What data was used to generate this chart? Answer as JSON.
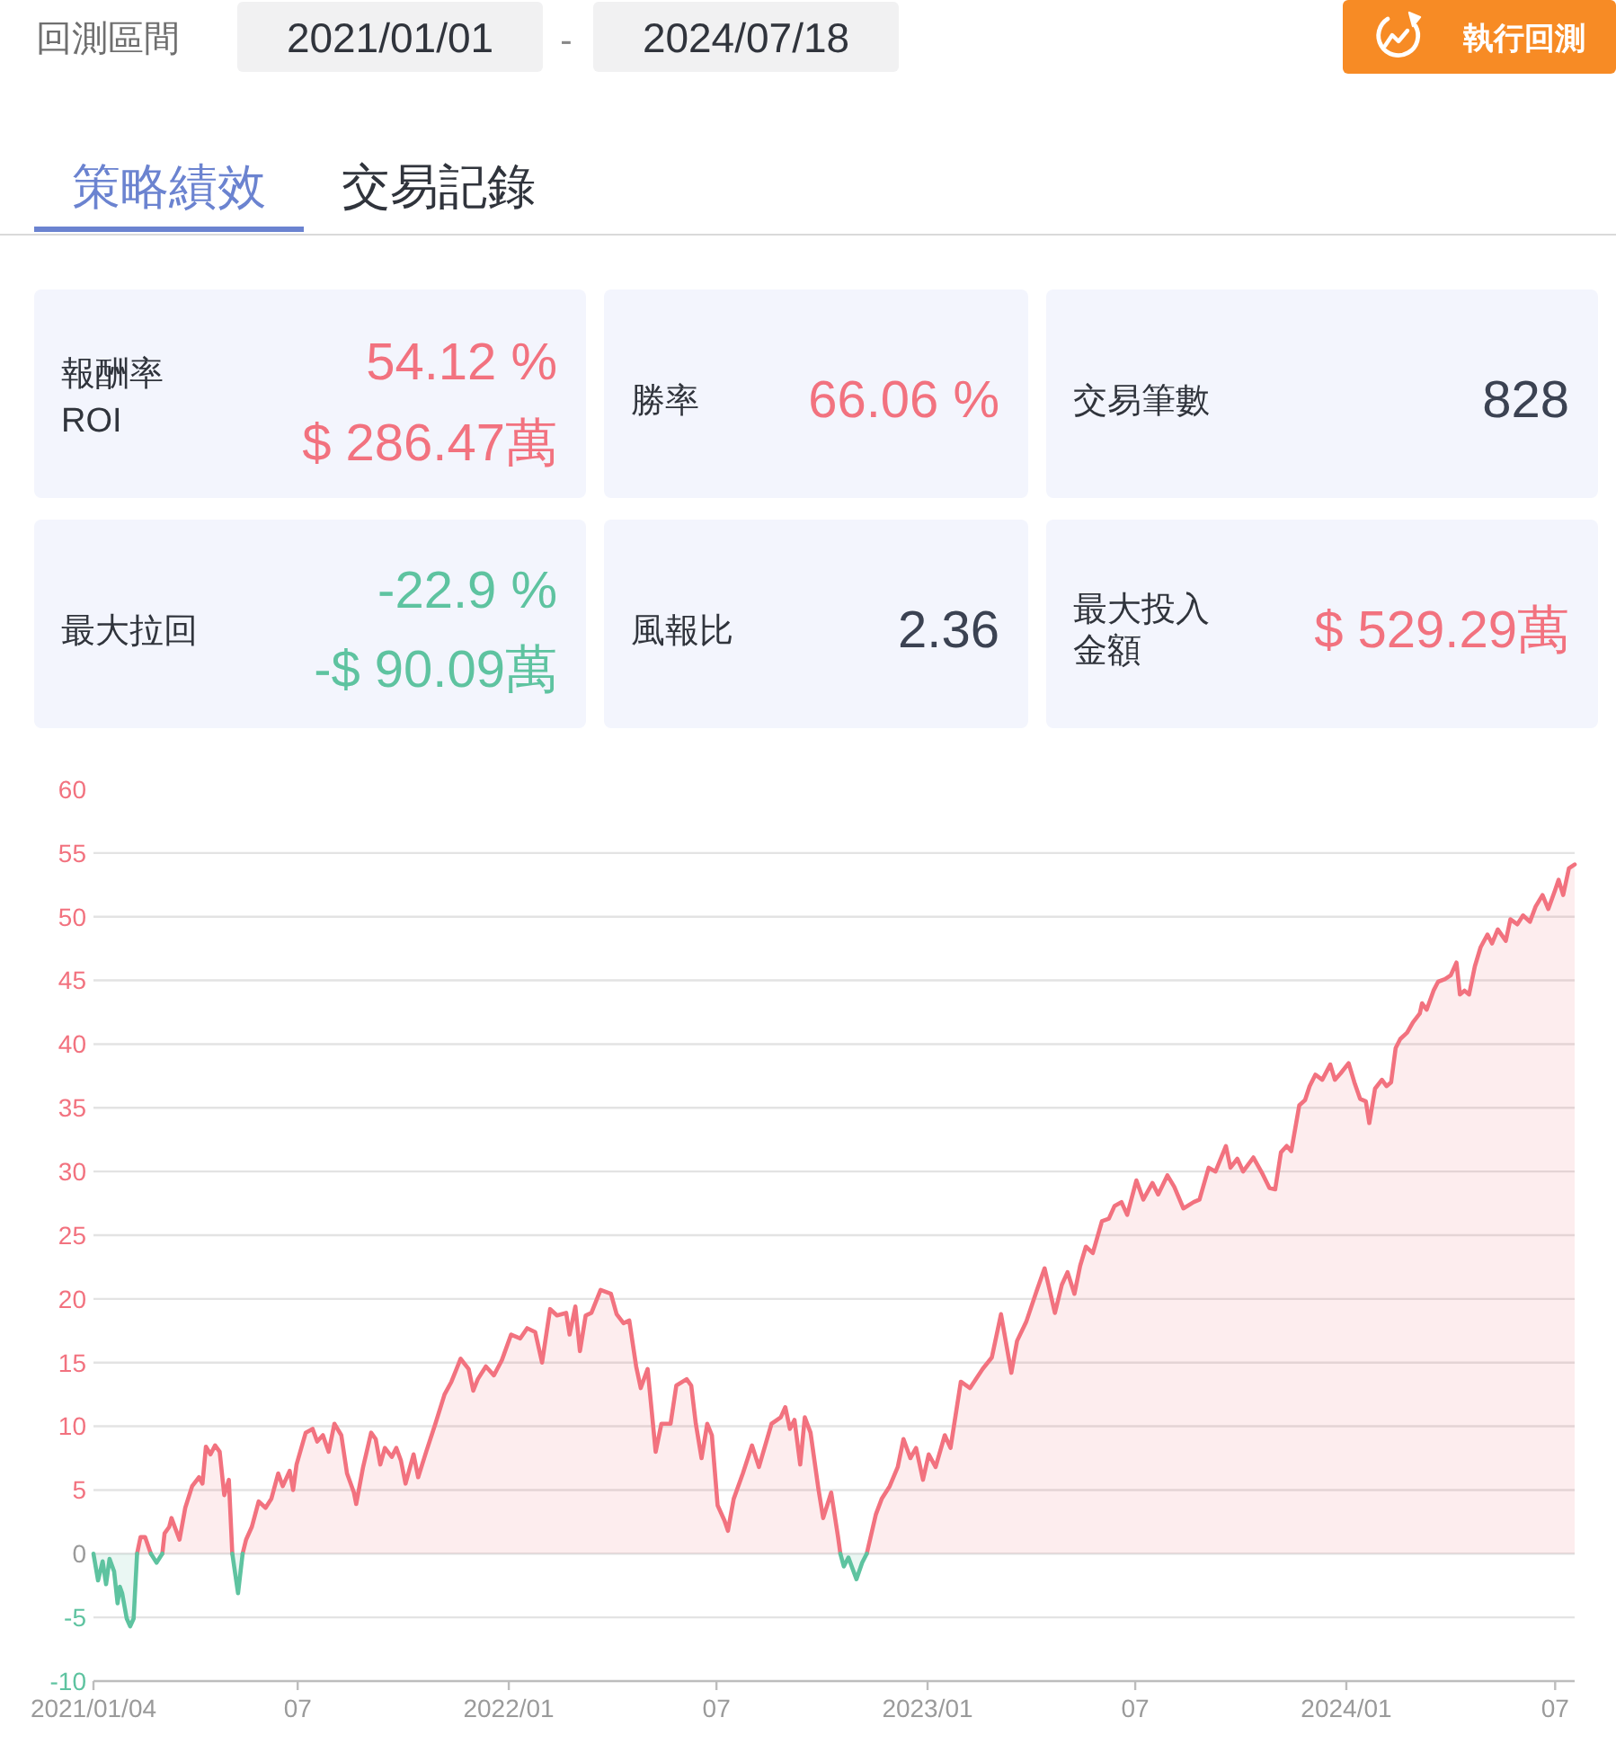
{
  "chart_data": [
    {
      "type": "other",
      "annotations": [
        "回測區間",
        "2021/01/01",
        "-",
        "2024/07/18",
        "執行回測",
        "策略績效",
        "交易記錄",
        "報酬率",
        "ROI",
        "54.12 %",
        "$ 286.47萬",
        "勝率",
        "66.06 %",
        "交易筆數",
        "828",
        "最大拉回",
        "-22.9 %",
        "-$ 90.09萬",
        "風報比",
        "2.36",
        "最大投入",
        "金額",
        "$ 529.29萬"
      ]
    },
    {
      "type": "area",
      "grid": "y",
      "xlim": [
        "2021-01-04",
        "2024-07-18"
      ],
      "ylim": [
        -10,
        60
      ],
      "yticks": [
        -10,
        -5,
        0,
        5,
        10,
        15,
        20,
        25,
        30,
        35,
        40,
        45,
        50,
        55,
        60
      ],
      "xticks": [
        {
          "value": "2021-01-04",
          "label": "2021/01/04"
        },
        {
          "value": "2021-07-01",
          "label": "07"
        },
        {
          "value": "2022-01-01",
          "label": "2022/01"
        },
        {
          "value": "2022-07-01",
          "label": "07"
        },
        {
          "value": "2023-01-01",
          "label": "2023/01"
        },
        {
          "value": "2023-07-01",
          "label": "07"
        },
        {
          "value": "2024-01-01",
          "label": "2024/01"
        },
        {
          "value": "2024-07-01",
          "label": "07"
        }
      ],
      "series": [
        {
          "color": "#f2727f",
          "x": [
            "2021-02-11",
            "2021-02-14",
            "2021-02-18",
            "2021-02-23",
            "2021-02-28",
            "2021-03-05",
            "2021-03-07",
            "2021-03-11",
            "2021-03-13",
            "2021-03-20",
            "2021-03-25",
            "2021-03-31",
            "2021-04-06",
            "2021-04-09",
            "2021-04-12",
            "2021-04-16",
            "2021-04-20",
            "2021-04-24",
            "2021-04-28",
            "2021-05-02",
            "2021-05-05",
            "2021-05-10",
            "2021-05-14",
            "2021-05-17",
            "2021-05-22",
            "2021-05-28",
            "2021-06-03",
            "2021-06-08",
            "2021-06-14",
            "2021-06-18",
            "2021-06-24",
            "2021-06-27",
            "2021-06-30",
            "2021-07-08",
            "2021-07-14",
            "2021-07-18",
            "2021-07-23",
            "2021-07-28",
            "2021-08-02",
            "2021-08-08",
            "2021-08-13",
            "2021-08-19",
            "2021-08-21",
            "2021-08-27",
            "2021-09-03",
            "2021-09-07",
            "2021-09-11",
            "2021-09-15",
            "2021-09-21",
            "2021-09-25",
            "2021-09-29",
            "2021-10-03",
            "2021-10-10",
            "2021-10-14",
            "2021-10-21",
            "2021-10-29",
            "2021-11-06",
            "2021-11-12",
            "2021-11-20",
            "2021-11-27",
            "2021-12-01",
            "2021-12-05",
            "2021-12-12",
            "2021-12-19",
            "2021-12-26",
            "2022-01-03",
            "2022-01-11",
            "2022-01-17",
            "2022-01-24",
            "2022-01-30",
            "2022-02-06",
            "2022-02-12",
            "2022-02-20",
            "2022-02-23",
            "2022-02-28",
            "2022-03-04",
            "2022-03-09",
            "2022-03-14",
            "2022-03-22",
            "2022-03-31",
            "2022-04-05",
            "2022-04-11",
            "2022-04-16",
            "2022-04-22",
            "2022-04-26",
            "2022-05-02",
            "2022-05-09",
            "2022-05-14",
            "2022-05-22",
            "2022-05-27",
            "2022-06-05",
            "2022-06-09",
            "2022-06-13",
            "2022-06-18",
            "2022-06-23",
            "2022-06-27",
            "2022-07-02",
            "2022-07-08",
            "2022-07-11",
            "2022-07-16",
            "2022-07-24",
            "2022-08-01",
            "2022-08-07",
            "2022-08-18",
            "2022-08-26",
            "2022-08-30",
            "2022-09-03",
            "2022-09-07",
            "2022-09-12",
            "2022-09-16",
            "2022-09-21",
            "2022-09-28",
            "2022-10-02",
            "2022-10-09",
            "2022-10-15",
            "2022-10-17",
            "2022-10-20",
            "2022-10-24",
            "2022-10-31",
            "2022-11-05",
            "2022-11-09",
            "2022-11-17",
            "2022-11-22",
            "2022-11-29",
            "2022-12-06",
            "2022-12-11",
            "2022-12-17",
            "2022-12-22",
            "2022-12-28",
            "2023-01-02",
            "2023-01-08",
            "2023-01-16",
            "2023-01-21",
            "2023-01-30",
            "2023-02-07",
            "2023-02-18",
            "2023-02-26",
            "2023-03-06",
            "2023-03-15",
            "2023-03-20",
            "2023-03-28",
            "2023-04-06",
            "2023-04-13",
            "2023-04-22",
            "2023-04-28",
            "2023-05-03",
            "2023-05-09",
            "2023-05-14",
            "2023-05-19",
            "2023-05-25",
            "2023-06-02",
            "2023-06-08",
            "2023-06-13",
            "2023-06-19",
            "2023-06-24",
            "2023-07-02",
            "2023-07-08",
            "2023-07-16",
            "2023-07-21",
            "2023-07-29",
            "2023-08-04",
            "2023-08-12",
            "2023-08-21",
            "2023-08-26",
            "2023-09-03",
            "2023-09-09",
            "2023-09-18",
            "2023-09-22",
            "2023-09-28",
            "2023-10-03",
            "2023-10-12",
            "2023-10-20",
            "2023-10-26",
            "2023-10-31",
            "2023-11-05",
            "2023-11-10",
            "2023-11-14",
            "2023-11-21",
            "2023-11-26",
            "2023-11-30",
            "2023-12-05",
            "2023-12-11",
            "2023-12-18",
            "2023-12-22",
            "2023-12-27",
            "2024-01-03",
            "2024-01-08",
            "2024-01-13",
            "2024-01-18",
            "2024-01-21",
            "2024-01-26",
            "2024-02-01",
            "2024-02-05",
            "2024-02-09",
            "2024-02-13",
            "2024-02-17",
            "2024-02-23",
            "2024-02-28",
            "2024-03-05",
            "2024-03-07",
            "2024-03-11",
            "2024-03-17",
            "2024-03-21",
            "2024-03-27",
            "2024-04-01",
            "2024-04-06",
            "2024-04-09",
            "2024-04-13",
            "2024-04-17",
            "2024-04-22",
            "2024-04-27",
            "2024-05-03",
            "2024-05-07",
            "2024-05-12",
            "2024-05-19",
            "2024-05-23",
            "2024-05-29",
            "2024-06-03",
            "2024-06-09",
            "2024-06-14",
            "2024-06-20",
            "2024-06-25",
            "2024-07-01",
            "2024-07-04",
            "2024-07-08",
            "2024-07-13",
            "2024-07-18"
          ],
          "values": [
            0,
            1.3,
            1.3,
            0,
            null,
            0,
            1.6,
            2.1,
            2.8,
            1.1,
            3.6,
            5.3,
            6.0,
            5.5,
            8.4,
            7.8,
            8.5,
            8.0,
            4.6,
            5.8,
            0,
            null,
            0,
            1.1,
            2.1,
            4.1,
            3.6,
            4.3,
            6.3,
            5.3,
            6.5,
            5.0,
            7.0,
            9.5,
            9.8,
            8.8,
            9.3,
            8.0,
            10.2,
            9.3,
            6.3,
            4.8,
            3.9,
            6.8,
            9.5,
            9.0,
            7.0,
            8.3,
            7.6,
            8.3,
            7.3,
            5.5,
            7.8,
            6.0,
            8.0,
            10.2,
            12.5,
            13.5,
            15.3,
            14.5,
            12.8,
            13.7,
            14.7,
            14.0,
            15.2,
            17.2,
            16.9,
            17.7,
            17.4,
            15.0,
            19.2,
            18.7,
            18.9,
            17.2,
            19.4,
            15.9,
            18.7,
            18.9,
            20.7,
            20.4,
            18.8,
            18.1,
            18.3,
            14.7,
            13.0,
            14.5,
            8.0,
            10.2,
            10.2,
            13.2,
            13.7,
            13.2,
            10.2,
            7.5,
            10.2,
            9.3,
            3.8,
            2.6,
            1.8,
            4.3,
            6.3,
            8.5,
            6.8,
            10.2,
            10.7,
            11.5,
            9.8,
            10.5,
            7.0,
            10.7,
            9.5,
            5.0,
            2.8,
            4.8,
            1.3,
            0,
            null,
            null,
            null,
            null,
            0,
            3.1,
            4.3,
            5.3,
            6.8,
            9.0,
            7.5,
            8.3,
            5.8,
            7.8,
            6.8,
            9.3,
            8.3,
            13.5,
            13.0,
            14.5,
            15.4,
            18.8,
            14.2,
            16.7,
            18.2,
            20.6,
            22.4,
            18.9,
            21.1,
            22.1,
            20.4,
            22.6,
            24.1,
            23.6,
            26.1,
            26.3,
            27.3,
            27.6,
            26.6,
            29.3,
            27.8,
            29.1,
            28.2,
            29.7,
            28.8,
            27.1,
            27.6,
            27.8,
            30.3,
            30.0,
            32.0,
            30.3,
            31.0,
            30.0,
            31.1,
            29.8,
            28.7,
            28.6,
            31.5,
            32.0,
            31.6,
            35.2,
            35.6,
            36.7,
            37.6,
            37.2,
            38.4,
            37.2,
            37.7,
            38.5,
            37.0,
            35.7,
            35.5,
            33.8,
            36.5,
            37.2,
            36.7,
            37.0,
            39.7,
            40.4,
            40.9,
            41.7,
            42.4,
            43.2,
            42.7,
            44.2,
            44.9,
            45.1,
            45.4,
            46.4,
            43.9,
            44.2,
            43.9,
            46.1,
            47.6,
            48.6,
            47.9,
            49.0,
            48.1,
            49.8,
            49.4,
            50.1,
            49.6,
            50.8,
            51.7,
            50.6,
            52.1,
            52.9,
            51.7,
            53.8,
            54.1
          ]
        },
        {
          "color": "#5ec3a0",
          "x": [
            "2021-01-04",
            "2021-01-08",
            "2021-01-12",
            "2021-01-15",
            "2021-01-18",
            "2021-01-22",
            "2021-01-25",
            "2021-01-27",
            "2021-01-29",
            "2021-02-02",
            "2021-02-05",
            "2021-02-08",
            "2021-02-11",
            "2021-02-14",
            "2021-05-05",
            "2021-05-10",
            "2021-05-14",
            "2021-05-17",
            "2022-10-17",
            "2022-10-20",
            "2022-10-24",
            "2022-10-31",
            "2022-11-05",
            "2022-11-09"
          ],
          "values": [
            0,
            -2.1,
            -0.6,
            -2.4,
            -0.4,
            -1.4,
            -3.9,
            -2.6,
            -3.1,
            -5.1,
            -5.7,
            -5.1,
            0,
            null,
            0,
            -3.1,
            0,
            null,
            0,
            -1.0,
            -0.3,
            -2.0,
            -0.7,
            0
          ]
        },
        {
          "type": "line",
          "color": "#5ec3a0",
          "x": [
            "2021-02-23",
            "2021-02-28",
            "2021-03-05"
          ],
          "values": [
            0,
            -0.7,
            0
          ]
        }
      ]
    }
  ]
}
